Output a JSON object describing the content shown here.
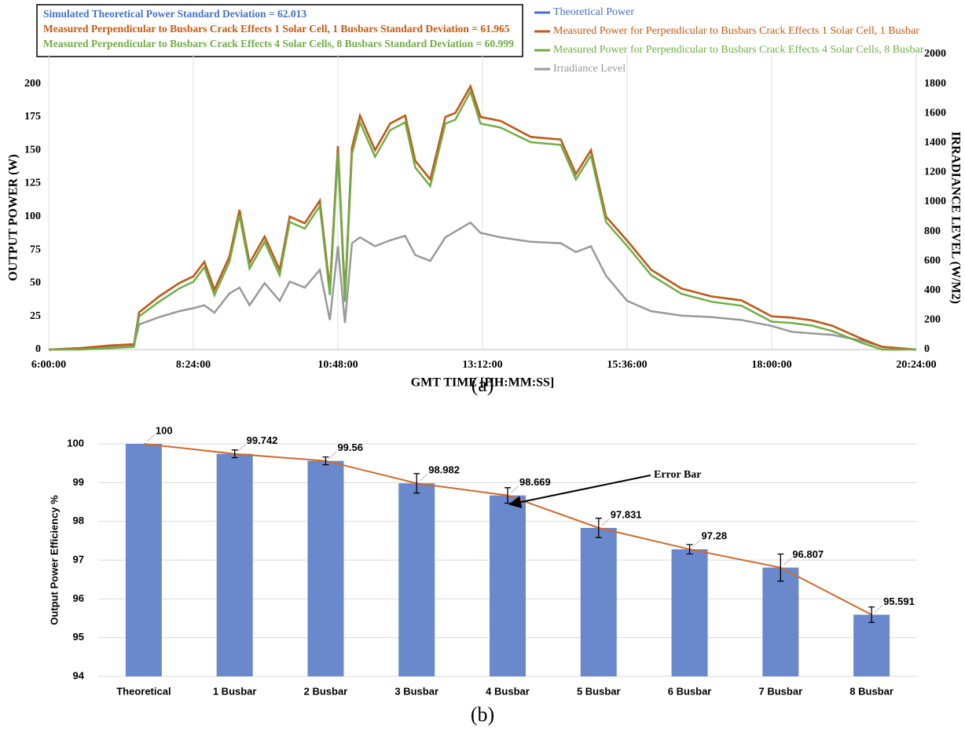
{
  "chart_data": [
    {
      "type": "line",
      "caption": "(a)",
      "xlabel": "GMT TIME [HH:MM:SS]",
      "ylabel": "OUTPUT POWER (W)",
      "y2label": "IRRADIANCE LEVEL (W/M2)",
      "annotations": [
        {
          "text": "Simulated Theoretical Power Standard Deviation = 62.013",
          "color": "#4472c4"
        },
        {
          "text": "Measured Perpendicular to Busbars Crack Effects 1 Solar Cell, 1 Busbars Standard Deviation = 61.965",
          "color": "#c55a11"
        },
        {
          "text": "Measured Perpendicular to Busbars Crack Effects 4 Solar Cells, 8 Busbars Standard Deviation = 60.999",
          "color": "#70ad47"
        }
      ],
      "xlim": [
        "6:00:00",
        "20:24:00"
      ],
      "xticks": [
        "6:00:00",
        "8:24:00",
        "10:48:00",
        "13:12:00",
        "15:36:00",
        "18:00:00",
        "20:24:00"
      ],
      "ylim": [
        0,
        222.2
      ],
      "yticks": [
        0,
        25,
        50,
        75,
        100,
        125,
        150,
        175,
        200
      ],
      "y2lim": [
        0,
        2000
      ],
      "y2ticks": [
        0,
        200,
        400,
        600,
        800,
        1000,
        1200,
        1400,
        1600,
        1800,
        2000
      ],
      "grid": "x",
      "x": [
        "6:00:00",
        "6:30:00",
        "7:00:00",
        "7:25:00",
        "7:30:00",
        "7:50:00",
        "8:10:00",
        "8:24:00",
        "8:35:00",
        "8:45:00",
        "9:00:00",
        "9:10:00",
        "9:20:00",
        "9:35:00",
        "9:50:00",
        "10:00:00",
        "10:15:00",
        "10:30:00",
        "10:40:00",
        "10:48:00",
        "10:55:00",
        "11:02:00",
        "11:10:00",
        "11:25:00",
        "11:40:00",
        "11:55:00",
        "12:05:00",
        "12:20:00",
        "12:35:00",
        "12:45:00",
        "13:00:00",
        "13:10:00",
        "13:30:00",
        "14:00:00",
        "14:30:00",
        "14:45:00",
        "15:00:00",
        "15:15:00",
        "15:36:00",
        "16:00:00",
        "16:30:00",
        "17:00:00",
        "17:30:00",
        "18:00:00",
        "18:20:00",
        "18:40:00",
        "19:00:00",
        "19:30:00",
        "19:50:00",
        "20:24:00"
      ],
      "series": [
        {
          "name": "Theoretical Power",
          "color": "#4472c4",
          "values": [
            0,
            1,
            3,
            4,
            28,
            40,
            50,
            55,
            66,
            45,
            70,
            105,
            65,
            85,
            60,
            100,
            95,
            112,
            45,
            153,
            40,
            152,
            176,
            150,
            170,
            176,
            142,
            128,
            175,
            178,
            198,
            175,
            172,
            160,
            158,
            132,
            150,
            100,
            82,
            60,
            46,
            40,
            37,
            25,
            24,
            22,
            18,
            8,
            2,
            0
          ]
        },
        {
          "name": "Measured Power for Perpendicular to Busbars Crack Effects 1 Solar Cell, 1 Busbar",
          "color": "#c55a11",
          "values": [
            0,
            1,
            3,
            4,
            28,
            40,
            50,
            55,
            66,
            45,
            70,
            105,
            65,
            85,
            60,
            100,
            95,
            112,
            45,
            153,
            40,
            152,
            176,
            150,
            170,
            176,
            142,
            128,
            175,
            178,
            198,
            175,
            172,
            160,
            158,
            132,
            150,
            100,
            82,
            60,
            46,
            40,
            37,
            25,
            24,
            22,
            18,
            8,
            2,
            0
          ]
        },
        {
          "name": "Measured Power for Perpendicular to Busbars Crack Effects 4 Solar Cells, 8 Busbar",
          "color": "#70ad47",
          "values": [
            0,
            0,
            1,
            2,
            25,
            36,
            46,
            51,
            62,
            41,
            66,
            101,
            61,
            81,
            56,
            96,
            91,
            108,
            41,
            148,
            36,
            147,
            171,
            145,
            165,
            171,
            137,
            123,
            170,
            173,
            194,
            170,
            167,
            156,
            154,
            128,
            146,
            96,
            78,
            56,
            42,
            36,
            33,
            21,
            20,
            18,
            14,
            5,
            0,
            0
          ]
        },
        {
          "name": "Irradiance Level",
          "color": "#999999",
          "axis": "y2",
          "values": [
            0,
            5,
            20,
            30,
            170,
            220,
            260,
            280,
            300,
            250,
            380,
            420,
            300,
            450,
            330,
            460,
            420,
            540,
            200,
            700,
            180,
            720,
            760,
            700,
            740,
            770,
            640,
            600,
            760,
            800,
            860,
            790,
            760,
            730,
            720,
            660,
            700,
            500,
            330,
            260,
            230,
            220,
            200,
            160,
            120,
            110,
            100,
            60,
            20,
            0
          ]
        }
      ]
    },
    {
      "type": "bar",
      "caption": "(b)",
      "ylabel": "Output Power Efficiency %",
      "categories": [
        "Theoretical",
        "1 Busbar",
        "2 Busbar",
        "3 Busbar",
        "4 Busbar",
        "5 Busbar",
        "6 Busbar",
        "7 Busbar",
        "8 Busbar"
      ],
      "values": [
        100,
        99.742,
        99.56,
        98.982,
        98.669,
        97.831,
        97.28,
        96.807,
        95.591
      ],
      "errors": [
        0,
        0.1,
        0.1,
        0.25,
        0.2,
        0.25,
        0.12,
        0.35,
        0.2
      ],
      "color": "#6a89cc",
      "line_color": "#d06a2a",
      "annotation": "Error Bar",
      "ylim": [
        94,
        100
      ],
      "yticks": [
        94,
        95,
        96,
        97,
        98,
        99,
        100
      ],
      "grid": "y"
    }
  ]
}
